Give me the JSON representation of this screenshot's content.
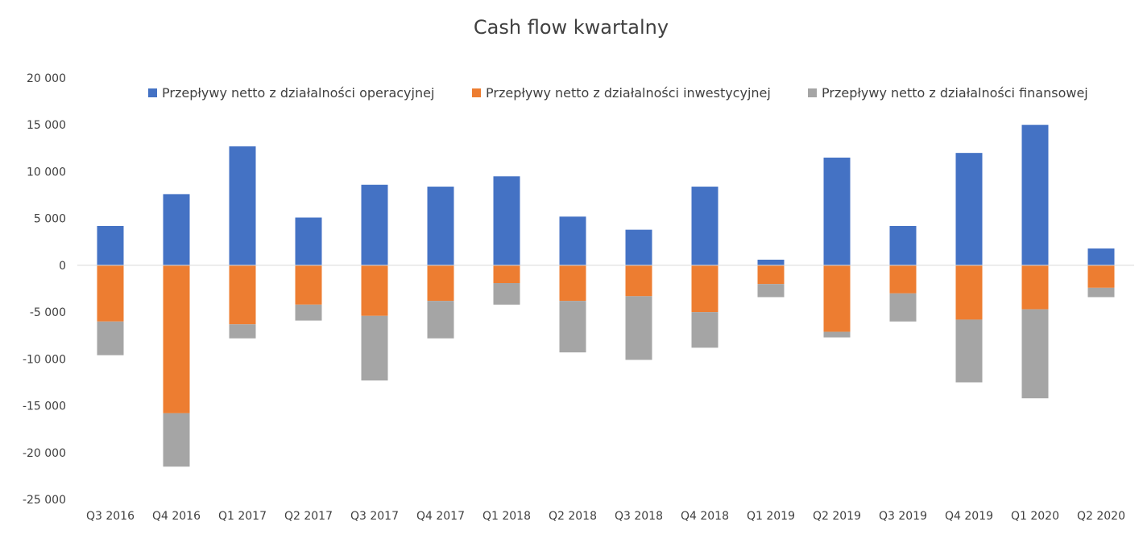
{
  "chart_data": {
    "type": "bar",
    "stacked": true,
    "title": "Cash flow kwartalny",
    "xlabel": "",
    "ylabel": "",
    "ylim": [
      -25000,
      20000
    ],
    "yticks": [
      20000,
      15000,
      10000,
      5000,
      0,
      -5000,
      -10000,
      -15000,
      -20000,
      -25000
    ],
    "ytick_labels": [
      "20 000",
      "15 000",
      "10 000",
      "5 000",
      "0",
      "-5 000",
      "-10 000",
      "-15 000",
      "-20 000",
      "-25 000"
    ],
    "grid": false,
    "legend_position": "top",
    "categories": [
      "Q3 2016",
      "Q4 2016",
      "Q1 2017",
      "Q2 2017",
      "Q3 2017",
      "Q4 2017",
      "Q1 2018",
      "Q2 2018",
      "Q3 2018",
      "Q4 2018",
      "Q1 2019",
      "Q2 2019",
      "Q3 2019",
      "Q4 2019",
      "Q1 2020",
      "Q2 2020"
    ],
    "series": [
      {
        "name": "Przepływy netto z działalności operacyjnej",
        "color": "#4472C4",
        "values": [
          4200,
          7600,
          12700,
          5100,
          8600,
          8400,
          9500,
          5200,
          3800,
          8400,
          600,
          11500,
          4200,
          12000,
          15000,
          1800
        ]
      },
      {
        "name": "Przepływy netto z działalności inwestycyjnej",
        "color": "#ED7D31",
        "values": [
          -6000,
          -15800,
          -6300,
          -4200,
          -5400,
          -3800,
          -1900,
          -3800,
          -3300,
          -5000,
          -2000,
          -7100,
          -3000,
          -5800,
          -4700,
          -2400
        ]
      },
      {
        "name": "Przepływy netto z działalności finansowej",
        "color": "#A5A5A5",
        "values": [
          -3600,
          -5700,
          -1500,
          -1700,
          -6900,
          -4000,
          -2300,
          -5500,
          -6800,
          -3800,
          -1400,
          -600,
          -3000,
          -6700,
          -9500,
          -1000
        ]
      }
    ]
  }
}
